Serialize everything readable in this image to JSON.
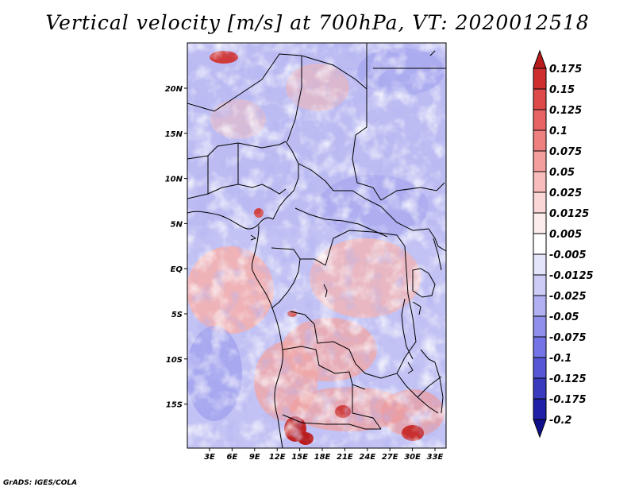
{
  "title": "Vertical velocity [m/s] at 700hPa, VT: 2020012518",
  "footer": "GrADS: IGES/COLA",
  "map": {
    "lon_labels": [
      "3E",
      "6E",
      "9E",
      "12E",
      "15E",
      "18E",
      "21E",
      "24E",
      "27E",
      "30E",
      "33E"
    ],
    "lat_labels": [
      "20N",
      "15N",
      "10N",
      "5N",
      "EQ",
      "5S",
      "10S",
      "15S"
    ]
  },
  "colorbar": {
    "levels": [
      "0.175",
      "0.15",
      "0.125",
      "0.1",
      "0.075",
      "0.05",
      "0.025",
      "0.0125",
      "0.005",
      "-0.005",
      "-0.0125",
      "-0.025",
      "-0.05",
      "-0.075",
      "-0.1",
      "-0.125",
      "-0.175",
      "-0.2"
    ],
    "colors": [
      "#b81c1c",
      "#cf2e2e",
      "#de4a4a",
      "#e86464",
      "#ef8080",
      "#f49e9e",
      "#f8bcbc",
      "#fbd6d6",
      "#fdecec",
      "#ffffff",
      "#e4e4fb",
      "#ccccf7",
      "#b0b0f2",
      "#9090ec",
      "#7474e6",
      "#5656d6",
      "#3a3abe",
      "#2020a8",
      "#10108c"
    ]
  },
  "colors": {
    "border": "#000000",
    "field_blue": "#b6b6f2",
    "field_red": "#f2a8a8"
  }
}
